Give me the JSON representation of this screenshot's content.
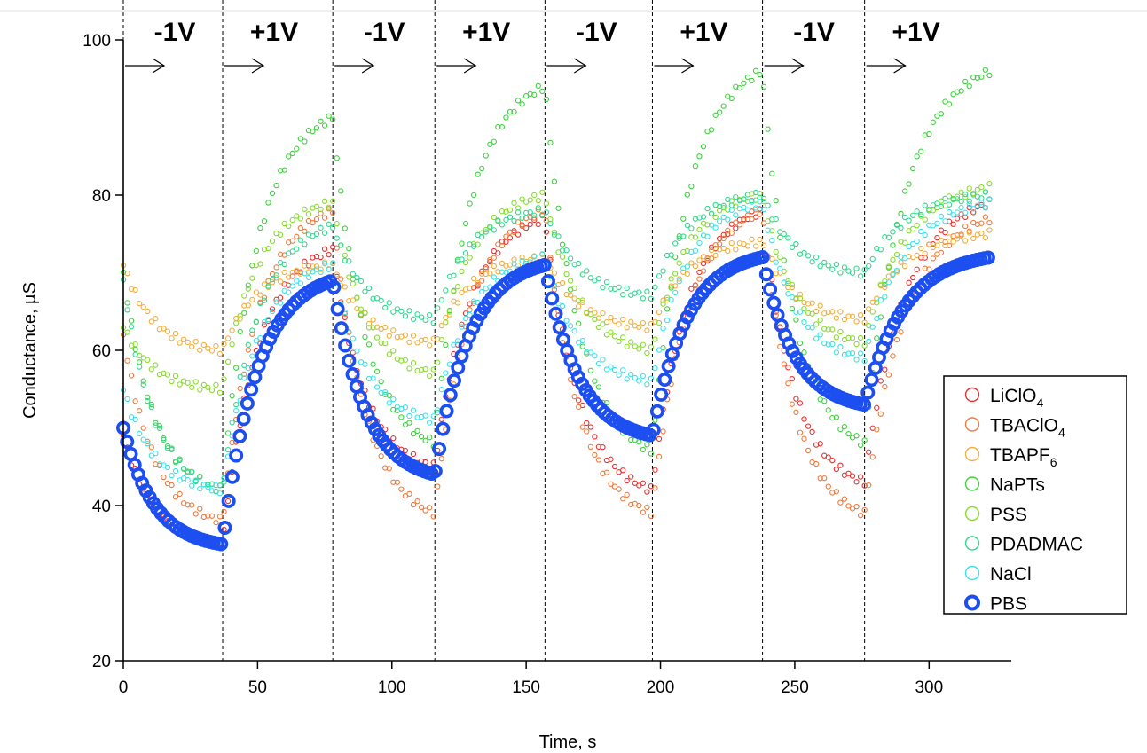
{
  "chart_data": {
    "type": "scatter",
    "title": "",
    "xlabel": "Time, s",
    "ylabel": "Conductance, µS",
    "xlim": [
      0,
      325
    ],
    "ylim": [
      20,
      100
    ],
    "x_ticks": [
      0,
      50,
      100,
      150,
      200,
      250,
      300
    ],
    "y_ticks": [
      20,
      40,
      60,
      80,
      100
    ],
    "grid": false,
    "legend_position": "right",
    "phases": [
      {
        "label": "-1V",
        "start": 0,
        "end": 37
      },
      {
        "label": "+1V",
        "start": 37,
        "end": 78
      },
      {
        "label": "-1V",
        "start": 78,
        "end": 116
      },
      {
        "label": "+1V",
        "start": 116,
        "end": 157
      },
      {
        "label": "-1V",
        "start": 157,
        "end": 197
      },
      {
        "label": "+1V",
        "start": 197,
        "end": 238
      },
      {
        "label": "-1V",
        "start": 238,
        "end": 276
      },
      {
        "label": "+1V",
        "start": 276,
        "end": 325
      }
    ],
    "switch_times": [
      0,
      37,
      78,
      116,
      157,
      197,
      238,
      276
    ],
    "series": [
      {
        "name": "LiClO",
        "sub": "4",
        "color": "#e83030",
        "points": [
          [
            0,
            49
          ],
          [
            37,
            35
          ],
          [
            78,
            73
          ],
          [
            116,
            45
          ],
          [
            157,
            77
          ],
          [
            197,
            42
          ],
          [
            238,
            78
          ],
          [
            276,
            43
          ],
          [
            323,
            79
          ]
        ]
      },
      {
        "name": "TBAClO",
        "sub": "4",
        "color": "#ef7a3c",
        "points": [
          [
            0,
            62
          ],
          [
            37,
            38
          ],
          [
            78,
            78
          ],
          [
            116,
            39
          ],
          [
            157,
            78
          ],
          [
            197,
            39
          ],
          [
            238,
            78
          ],
          [
            276,
            39
          ],
          [
            323,
            77
          ]
        ]
      },
      {
        "name": "TBAPF",
        "sub": "6",
        "color": "#f3ad3a",
        "points": [
          [
            0,
            71
          ],
          [
            37,
            60
          ],
          [
            78,
            71
          ],
          [
            116,
            61
          ],
          [
            157,
            72
          ],
          [
            197,
            63
          ],
          [
            238,
            74
          ],
          [
            276,
            64
          ],
          [
            323,
            75
          ]
        ]
      },
      {
        "name": "NaPTs",
        "sub": "",
        "color": "#40d040",
        "points": [
          [
            0,
            70
          ],
          [
            37,
            42
          ],
          [
            78,
            90
          ],
          [
            116,
            48
          ],
          [
            157,
            94
          ],
          [
            197,
            47
          ],
          [
            238,
            96
          ],
          [
            276,
            48
          ],
          [
            323,
            96
          ]
        ]
      },
      {
        "name": "PSS",
        "sub": "",
        "color": "#88dc2c",
        "points": [
          [
            0,
            63
          ],
          [
            37,
            55
          ],
          [
            78,
            79
          ],
          [
            116,
            57
          ],
          [
            157,
            80
          ],
          [
            197,
            60
          ],
          [
            238,
            80
          ],
          [
            276,
            61
          ],
          [
            323,
            81
          ]
        ]
      },
      {
        "name": "PDADMAC",
        "sub": "",
        "color": "#30d890",
        "points": [
          [
            0,
            69
          ],
          [
            37,
            42
          ],
          [
            78,
            76
          ],
          [
            116,
            64
          ],
          [
            157,
            78
          ],
          [
            197,
            67
          ],
          [
            238,
            80
          ],
          [
            276,
            70
          ],
          [
            323,
            80
          ]
        ]
      },
      {
        "name": "NaCl",
        "sub": "",
        "color": "#3ae2ea",
        "points": [
          [
            0,
            55
          ],
          [
            37,
            42
          ],
          [
            78,
            71
          ],
          [
            116,
            51
          ],
          [
            157,
            72
          ],
          [
            197,
            56
          ],
          [
            238,
            79
          ],
          [
            276,
            59
          ],
          [
            323,
            79
          ]
        ]
      },
      {
        "name": "PBS",
        "sub": "",
        "color": "#1c4ef0",
        "points": [
          [
            0,
            50
          ],
          [
            37,
            35
          ],
          [
            78,
            69
          ],
          [
            116,
            44
          ],
          [
            157,
            71
          ],
          [
            197,
            49
          ],
          [
            238,
            72
          ],
          [
            276,
            53
          ],
          [
            323,
            72
          ]
        ]
      }
    ]
  }
}
